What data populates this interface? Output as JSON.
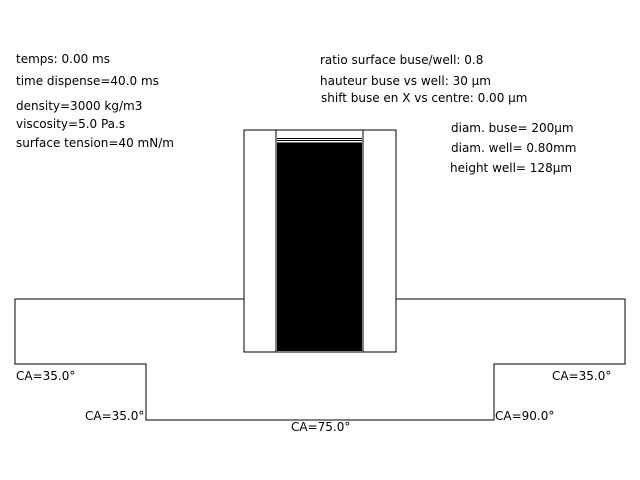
{
  "params_left": {
    "temps": "temps: 0.00 ms",
    "time_dispense": "time dispense=40.0 ms",
    "density": "density=3000 kg/m3",
    "viscosity": "viscosity=5.0 Pa.s",
    "surface_tension": "surface tension=40 mN/m"
  },
  "params_center": {
    "ratio": "ratio surface buse/well: 0.8",
    "hauteur": "hauteur buse vs well: 30 µm",
    "shift": "shift buse en X vs centre: 0.00 µm"
  },
  "params_right": {
    "diam_buse": "diam. buse= 200µm",
    "diam_well": "diam. well= 0.80mm",
    "height_well": "height well= 128µm"
  },
  "contact_angles": {
    "top_left": "CA=35.0°",
    "top_right": "CA=35.0°",
    "wall_left": "CA=35.0°",
    "bottom": "CA=75.0°",
    "wall_right": "CA=90.0°"
  },
  "simulation": {
    "fluid_fill_fraction": 0.97,
    "colors": {
      "fluid": "#000000",
      "outline": "#000000",
      "background": "#ffffff"
    }
  }
}
